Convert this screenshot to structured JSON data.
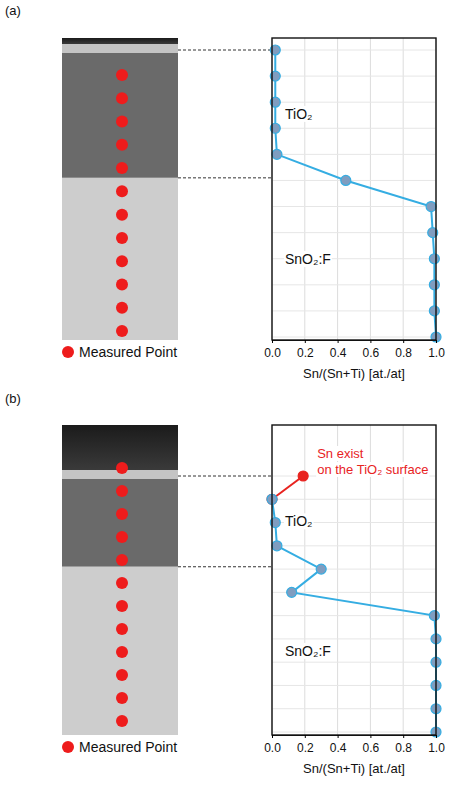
{
  "chart_data": [
    {
      "type": "line",
      "panel": "(a)",
      "xlabel": "Sn/(Sn+Ti) [at./at]",
      "categories": [
        null,
        null,
        null,
        null,
        null,
        null,
        null,
        null,
        null,
        null,
        null,
        null
      ],
      "series": [
        {
          "color": "#35ade2",
          "marker": "circle",
          "values": [
            0.02,
            0.02,
            0.02,
            0.02,
            0.03,
            0.45,
            0.97,
            0.98,
            0.99,
            0.99,
            0.99,
            1.0
          ]
        }
      ],
      "xlim": [
        0,
        1
      ],
      "xticks": [
        {
          "value": 0,
          "label": "0.0"
        },
        {
          "value": 0.2,
          "label": "0.2"
        },
        {
          "value": 0.4,
          "label": "0.4"
        },
        {
          "value": 0.6,
          "label": "0.6"
        },
        {
          "value": 0.8,
          "label": "0.8"
        },
        {
          "value": 1,
          "label": "1.0"
        }
      ],
      "grid": true,
      "tick_labels": "x",
      "layer_labels": [
        "TiO₂",
        "SnO₂:F"
      ],
      "legend_label": "Measured Point",
      "legend": "bottom-left"
    },
    {
      "type": "line",
      "panel": "(b)",
      "xlabel": "Sn/(Sn+Ti) [at./at]",
      "categories": [
        null,
        null,
        null,
        null,
        null,
        null,
        null,
        null,
        null,
        null,
        null,
        null
      ],
      "series": [
        {
          "color": "#e8231f",
          "marker": "circle",
          "values": [
            0.19,
            0.0,
            null,
            null,
            null,
            null,
            null,
            null,
            null,
            null,
            null,
            null
          ]
        },
        {
          "color": "#35ade2",
          "marker": "circle",
          "values": [
            null,
            0.0,
            0.02,
            0.03,
            0.3,
            0.12,
            0.99,
            1.0,
            1.0,
            1.0,
            1.0,
            1.0
          ]
        }
      ],
      "xlim": [
        0,
        1
      ],
      "xticks": [
        {
          "value": 0,
          "label": "0.0"
        },
        {
          "value": 0.2,
          "label": "0.2"
        },
        {
          "value": 0.4,
          "label": "0.4"
        },
        {
          "value": 0.6,
          "label": "0.6"
        },
        {
          "value": 0.8,
          "label": "0.8"
        },
        {
          "value": 1,
          "label": "1.0"
        }
      ],
      "grid": true,
      "tick_labels": "x",
      "layer_labels": [
        "TiO₂",
        "SnO₂:F"
      ],
      "annotation": [
        "Sn exist",
        "on the TiO₂ surface"
      ],
      "legend_label": "Measured Point",
      "legend": "bottom-left"
    }
  ]
}
